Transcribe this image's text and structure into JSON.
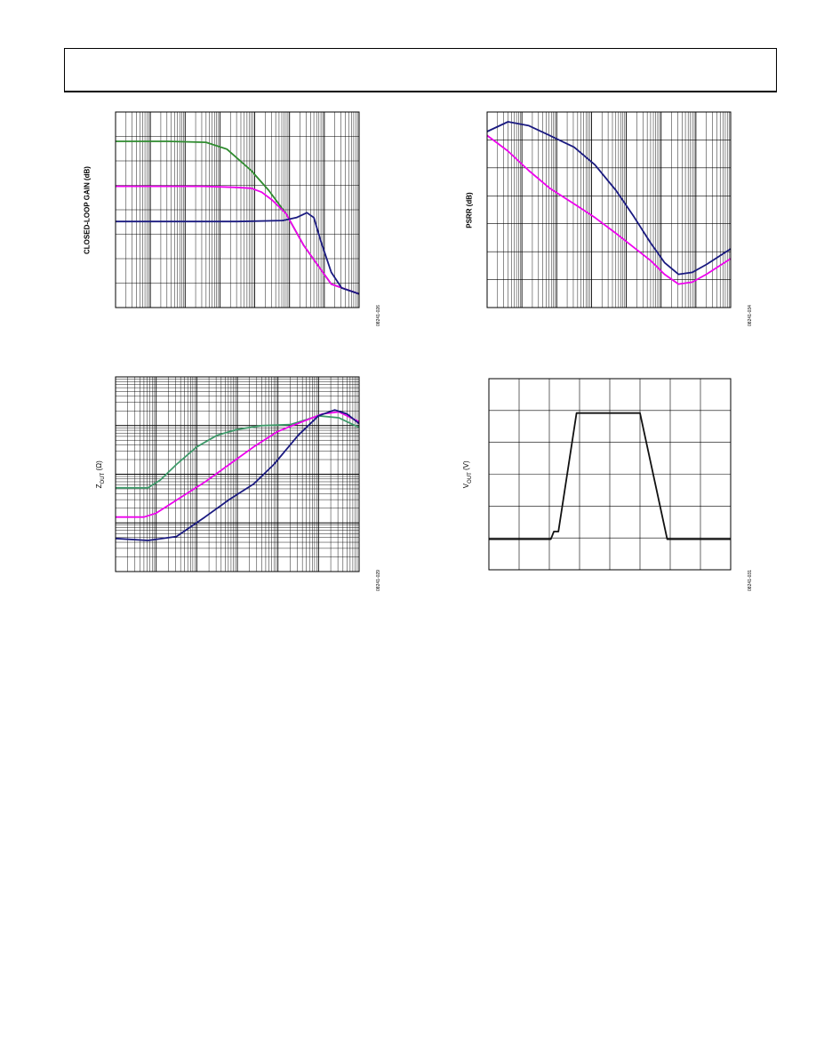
{
  "chart_data": [
    {
      "id": "closed_loop_gain",
      "type": "line",
      "ylabel": "CLOSED-LOOP GAIN (dB)",
      "figure_number": "08241-026",
      "x_scale": "log",
      "x_decades": 7,
      "y_divisions": 8,
      "series": [
        {
          "color": "#2e8b2e",
          "points": [
            [
              0,
              0.15
            ],
            [
              1.5,
              0.15
            ],
            [
              2.6,
              0.155
            ],
            [
              3.2,
              0.19
            ],
            [
              3.9,
              0.3
            ],
            [
              4.4,
              0.4
            ],
            [
              4.9,
              0.52
            ],
            [
              5.4,
              0.68
            ],
            [
              5.8,
              0.78
            ],
            [
              6.2,
              0.88
            ],
            [
              7,
              0.93
            ]
          ]
        },
        {
          "color": "#ee00ee",
          "points": [
            [
              0,
              0.38
            ],
            [
              2.5,
              0.38
            ],
            [
              3.4,
              0.385
            ],
            [
              3.9,
              0.39
            ],
            [
              4.2,
              0.41
            ],
            [
              4.5,
              0.45
            ],
            [
              4.9,
              0.52
            ],
            [
              5.4,
              0.68
            ],
            [
              5.8,
              0.78
            ],
            [
              6.2,
              0.88
            ],
            [
              7,
              0.93
            ]
          ]
        },
        {
          "color": "#1a1a80",
          "points": [
            [
              0,
              0.56
            ],
            [
              3.5,
              0.56
            ],
            [
              4.8,
              0.555
            ],
            [
              5.2,
              0.54
            ],
            [
              5.5,
              0.515
            ],
            [
              5.7,
              0.54
            ],
            [
              5.9,
              0.66
            ],
            [
              6.2,
              0.82
            ],
            [
              6.5,
              0.9
            ],
            [
              7,
              0.93
            ]
          ]
        }
      ]
    },
    {
      "id": "psrr",
      "type": "line",
      "ylabel": "PSRR (dB)",
      "figure_number": "08241-034",
      "x_scale": "log",
      "x_decades": 7,
      "y_divisions": 7,
      "series": [
        {
          "color": "#1a1a80",
          "points": [
            [
              0,
              0.1
            ],
            [
              0.6,
              0.05
            ],
            [
              1.2,
              0.07
            ],
            [
              1.8,
              0.12
            ],
            [
              2.5,
              0.18
            ],
            [
              3.1,
              0.27
            ],
            [
              3.7,
              0.4
            ],
            [
              4.2,
              0.53
            ],
            [
              4.7,
              0.67
            ],
            [
              5.1,
              0.77
            ],
            [
              5.5,
              0.83
            ],
            [
              5.9,
              0.82
            ],
            [
              6.3,
              0.78
            ],
            [
              7,
              0.7
            ]
          ]
        },
        {
          "color": "#ee00ee",
          "points": [
            [
              0,
              0.12
            ],
            [
              0.6,
              0.2
            ],
            [
              1.2,
              0.3
            ],
            [
              1.8,
              0.39
            ],
            [
              2.5,
              0.47
            ],
            [
              3.1,
              0.54
            ],
            [
              3.7,
              0.62
            ],
            [
              4.2,
              0.69
            ],
            [
              4.7,
              0.76
            ],
            [
              5.1,
              0.83
            ],
            [
              5.5,
              0.88
            ],
            [
              5.9,
              0.87
            ],
            [
              6.3,
              0.83
            ],
            [
              7,
              0.75
            ]
          ]
        }
      ]
    },
    {
      "id": "zout",
      "type": "line",
      "ylabel": "Z_OUT",
      "ylabel_main": "Z",
      "ylabel_sub": "OUT",
      "ylabel_unit": " (Ω)",
      "figure_number": "08241-029",
      "x_scale": "log",
      "x_decades": 6,
      "y_scale": "log",
      "y_decades": 4,
      "series": [
        {
          "color": "#3e9a6a",
          "points": [
            [
              0,
              0.57
            ],
            [
              0.8,
              0.57
            ],
            [
              1.1,
              0.53
            ],
            [
              1.5,
              0.45
            ],
            [
              2,
              0.36
            ],
            [
              2.5,
              0.3
            ],
            [
              3,
              0.27
            ],
            [
              3.6,
              0.25
            ],
            [
              4.3,
              0.245
            ],
            [
              5,
              0.2
            ],
            [
              5.5,
              0.21
            ],
            [
              6,
              0.26
            ]
          ]
        },
        {
          "color": "#ee00ee",
          "points": [
            [
              0,
              0.72
            ],
            [
              0.7,
              0.72
            ],
            [
              1,
              0.7
            ],
            [
              1.6,
              0.62
            ],
            [
              2.2,
              0.54
            ],
            [
              2.8,
              0.45
            ],
            [
              3.4,
              0.36
            ],
            [
              4,
              0.28
            ],
            [
              4.6,
              0.23
            ],
            [
              5.1,
              0.19
            ],
            [
              5.5,
              0.18
            ],
            [
              6,
              0.23
            ]
          ]
        },
        {
          "color": "#1a1a80",
          "points": [
            [
              0,
              0.83
            ],
            [
              0.8,
              0.84
            ],
            [
              1.5,
              0.82
            ],
            [
              2.2,
              0.72
            ],
            [
              2.8,
              0.63
            ],
            [
              3.4,
              0.55
            ],
            [
              3.9,
              0.45
            ],
            [
              4.5,
              0.3
            ],
            [
              5,
              0.2
            ],
            [
              5.4,
              0.17
            ],
            [
              5.7,
              0.19
            ],
            [
              6,
              0.24
            ]
          ]
        }
      ]
    },
    {
      "id": "vout",
      "type": "line",
      "ylabel": "V_OUT (V)",
      "ylabel_main": "V",
      "ylabel_sub": "OUT",
      "ylabel_unit": " (V)",
      "figure_number": "08241-031",
      "x_divisions": 8,
      "y_divisions": 6,
      "series": [
        {
          "color": "#111111",
          "points": [
            [
              0,
              0.84
            ],
            [
              2.05,
              0.84
            ],
            [
              2.15,
              0.8
            ],
            [
              2.3,
              0.8
            ],
            [
              2.9,
              0.18
            ],
            [
              5.0,
              0.18
            ],
            [
              5.9,
              0.84
            ],
            [
              8,
              0.84
            ]
          ]
        }
      ]
    }
  ]
}
